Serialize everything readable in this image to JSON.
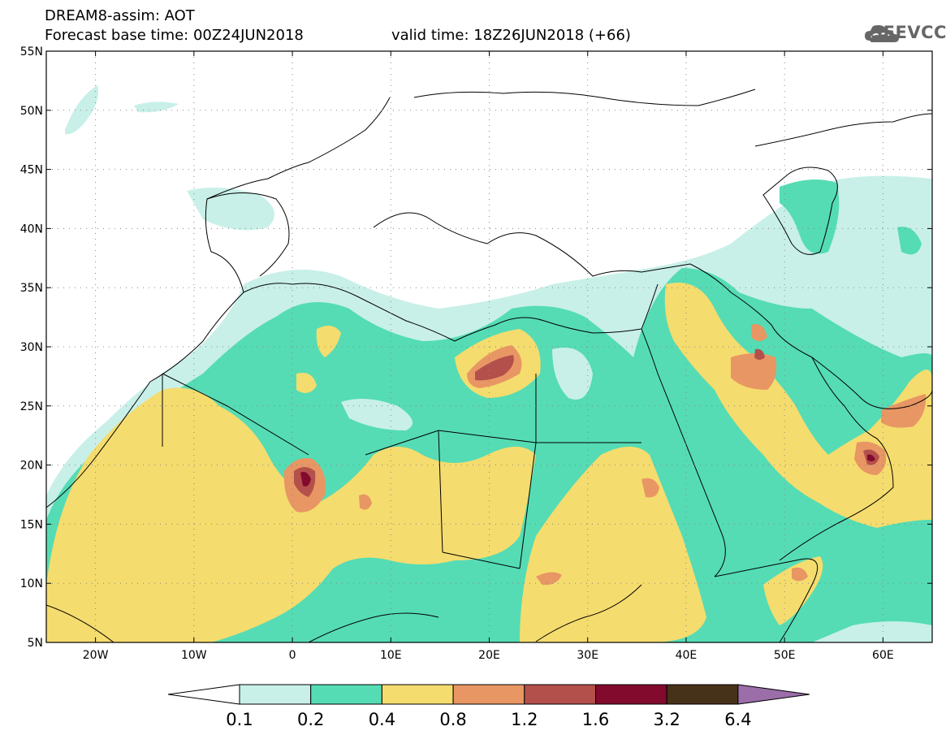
{
  "header": {
    "title": "DREAM8-assim: AOT",
    "base_time": "Forecast base time: 00Z24JUN2018",
    "valid_time": "valid time: 18Z26JUN2018 (+66)"
  },
  "logo": {
    "text": "SEEVCCC",
    "icon": "cloud-icon",
    "color": "#666666"
  },
  "map": {
    "lon_range": [
      -25,
      65
    ],
    "lat_range": [
      5,
      55
    ],
    "lat_ticks": [
      "5N",
      "10N",
      "15N",
      "20N",
      "25N",
      "30N",
      "35N",
      "40N",
      "45N",
      "50N",
      "55N"
    ],
    "lon_ticks": [
      "20W",
      "10W",
      "0",
      "10E",
      "20E",
      "30E",
      "40E",
      "50E",
      "60E"
    ],
    "lat_values": [
      5,
      10,
      15,
      20,
      25,
      30,
      35,
      40,
      45,
      50,
      55
    ],
    "lon_values": [
      -20,
      -10,
      0,
      10,
      20,
      30,
      40,
      50,
      60
    ],
    "grid": "dotted"
  },
  "colorbar": {
    "labels": [
      "0.1",
      "0.2",
      "0.4",
      "0.8",
      "1.2",
      "1.6",
      "3.2",
      "6.4"
    ],
    "colors": [
      "#ffffff",
      "#c8f0e8",
      "#55dcb4",
      "#f5dc6e",
      "#e89664",
      "#b4504b",
      "#820a2d",
      "#463219",
      "#9b6eaa"
    ]
  }
}
